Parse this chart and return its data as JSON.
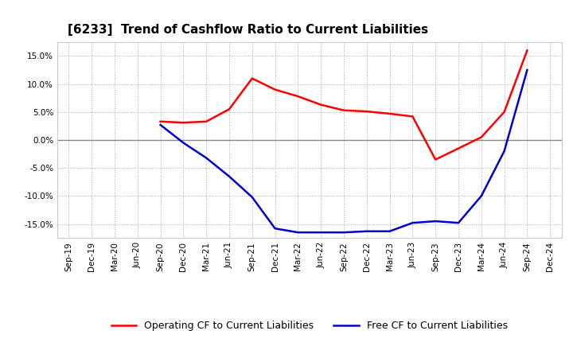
{
  "title": "[6233]  Trend of Cashflow Ratio to Current Liabilities",
  "x_labels": [
    "Sep-19",
    "Dec-19",
    "Mar-20",
    "Jun-20",
    "Sep-20",
    "Dec-20",
    "Mar-21",
    "Jun-21",
    "Sep-21",
    "Dec-21",
    "Mar-22",
    "Jun-22",
    "Sep-22",
    "Dec-22",
    "Mar-23",
    "Jun-23",
    "Sep-23",
    "Dec-23",
    "Mar-24",
    "Jun-24",
    "Sep-24",
    "Dec-24"
  ],
  "operating_cf": [
    null,
    null,
    null,
    null,
    3.3,
    3.1,
    3.3,
    5.5,
    11.0,
    9.0,
    7.8,
    6.3,
    5.3,
    5.1,
    4.7,
    4.2,
    -3.5,
    -1.5,
    0.5,
    5.0,
    16.0,
    null
  ],
  "free_cf": [
    null,
    null,
    null,
    null,
    2.7,
    -0.5,
    -3.2,
    -6.5,
    -10.2,
    -15.8,
    -16.5,
    -16.5,
    -16.5,
    -16.3,
    -16.3,
    -14.8,
    -14.5,
    -14.8,
    -10.0,
    -2.0,
    12.5,
    null
  ],
  "ylim": [
    -17.5,
    17.5
  ],
  "yticks": [
    -15.0,
    -10.0,
    -5.0,
    0.0,
    5.0,
    10.0,
    15.0
  ],
  "operating_color": "#FF0000",
  "free_color": "#0000CC",
  "background_color": "#FFFFFF",
  "grid_color": "#AAAAAA",
  "zero_line_color": "#888888",
  "title_fontsize": 11,
  "tick_fontsize": 7.5,
  "legend_fontsize": 9
}
